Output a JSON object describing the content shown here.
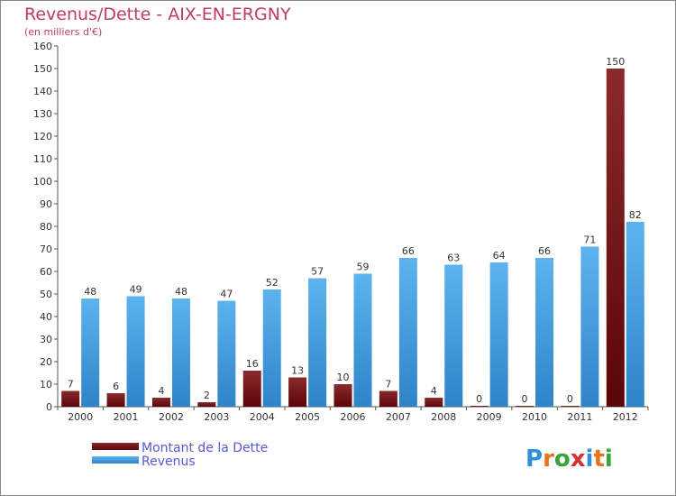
{
  "chart_data": {
    "type": "bar",
    "title": "Revenus/Dette - AIX-EN-ERGNY",
    "subtitle": "(en milliers d'€)",
    "categories": [
      "2000",
      "2001",
      "2002",
      "2003",
      "2004",
      "2005",
      "2006",
      "2007",
      "2008",
      "2009",
      "2010",
      "2011",
      "2012"
    ],
    "series": [
      {
        "name": "Montant de la Dette",
        "color": "#6b0b0e",
        "values": [
          7,
          6,
          4,
          2,
          16,
          13,
          10,
          7,
          4,
          0,
          0,
          0,
          150
        ]
      },
      {
        "name": "Revenus",
        "color": "#47a3e6",
        "values": [
          48,
          49,
          48,
          47,
          52,
          57,
          59,
          66,
          63,
          64,
          66,
          71,
          82
        ]
      }
    ],
    "yticks": [
      0,
      10,
      20,
      30,
      40,
      50,
      60,
      70,
      80,
      90,
      100,
      110,
      120,
      130,
      140,
      150,
      160
    ],
    "ylim": [
      0,
      160
    ],
    "grid": false,
    "legend_position": "bottom-left"
  },
  "brand": {
    "text": "Proxiti",
    "colors": [
      "#2f8fd8",
      "#e8731a",
      "#3aa33a",
      "#d83030"
    ]
  }
}
